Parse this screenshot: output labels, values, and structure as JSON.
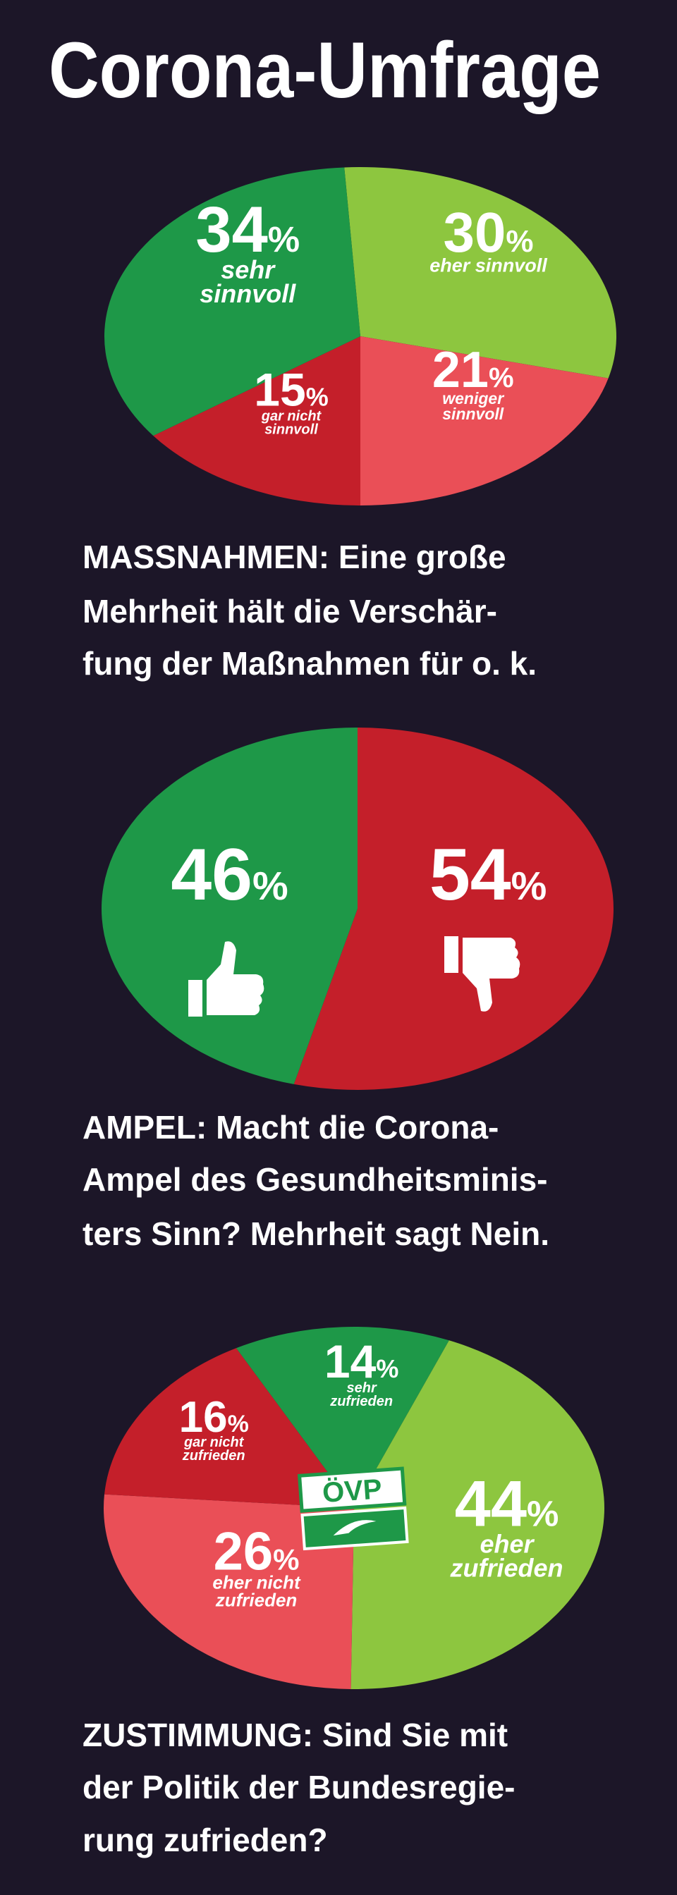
{
  "title": "Corona-Umfrage",
  "chart_data": [
    {
      "type": "pie",
      "categories": [
        "eher sinnvoll",
        "weniger sinnvoll",
        "gar nicht sinnvoll",
        "sehr sinnvoll"
      ],
      "values": [
        30,
        21,
        15,
        34
      ],
      "value_labels": [
        "30%",
        "21%",
        "15%",
        "34%"
      ],
      "colors": [
        "#8dc63f",
        "#ea4f57",
        "#c41f2a",
        "#1e9848"
      ],
      "caption": [
        "MASSNAHMEN: Eine große",
        "Mehrheit hält die Verschär-",
        "fung der Maßnahmen für o. k."
      ]
    },
    {
      "type": "pie",
      "categories": [
        null,
        null
      ],
      "values": [
        54,
        46
      ],
      "value_labels": [
        "54%",
        "46%"
      ],
      "colors": [
        "#c41f2a",
        "#1e9848"
      ],
      "caption": [
        "AMPEL: Macht die Corona-",
        "Ampel des Gesundheitsminis-",
        "ters Sinn? Mehrheit sagt Nein."
      ]
    },
    {
      "type": "pie",
      "categories": [
        "sehr zufrieden",
        "eher zufrieden",
        "eher nicht zufrieden",
        "gar nicht zufrieden"
      ],
      "values": [
        14,
        44,
        26,
        16
      ],
      "value_labels": [
        "14%",
        "44%",
        "26%",
        "16%"
      ],
      "colors": [
        "#1e9848",
        "#8dc63f",
        "#ea4f57",
        "#c41f2a"
      ],
      "annotations": [
        "ÖVP"
      ],
      "caption": [
        "ZUSTIMMUNG: Sind Sie mit",
        "der Politik der Bundesregie-",
        "rung zufrieden?"
      ]
    }
  ]
}
